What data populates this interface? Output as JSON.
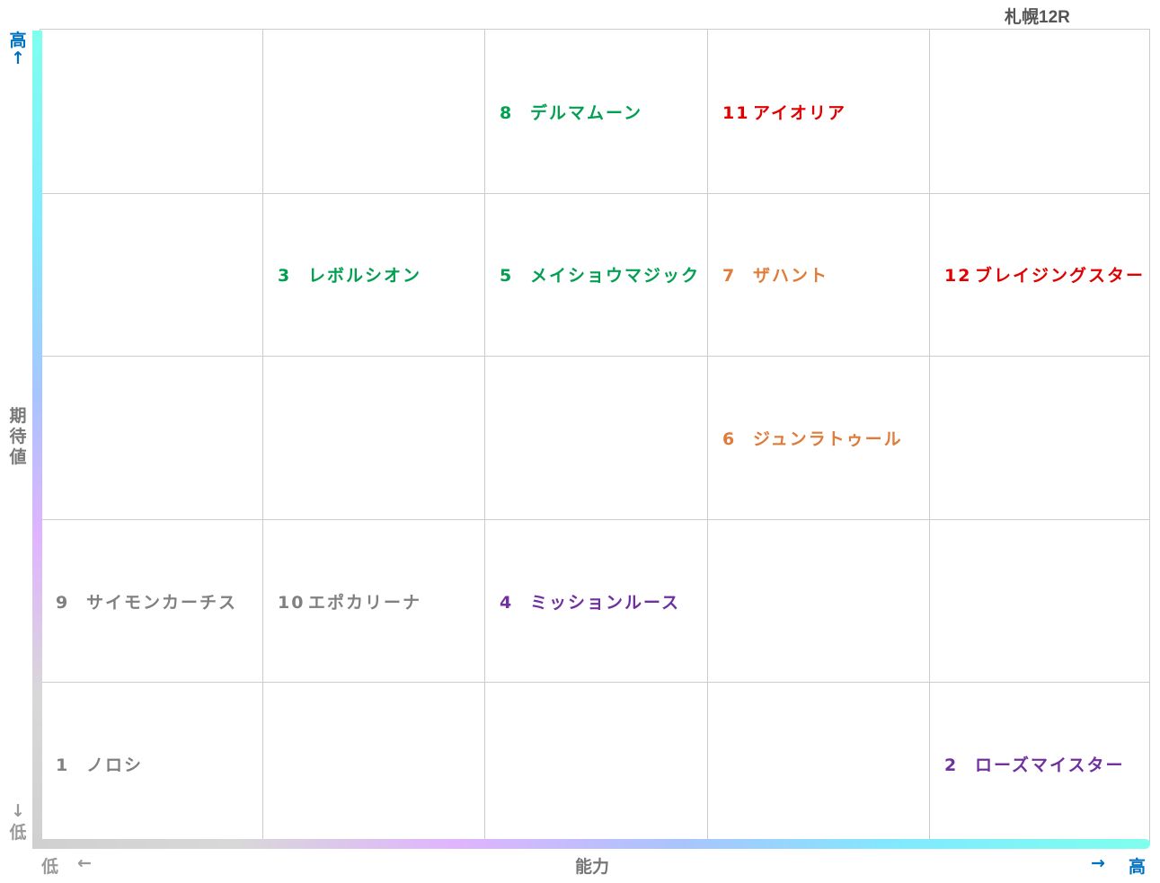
{
  "race_title": "札幌12R",
  "colors": {
    "gray": "#808080",
    "green": "#00a050",
    "purple": "#7030a0",
    "orange": "#e07b39",
    "red": "#e00000",
    "axis_blue": "#0070c0",
    "grid": "#cccccc"
  },
  "axis_labels": {
    "y_high": "高",
    "y_high_arrow": "↑",
    "y_title_1": "期",
    "y_title_2": "待",
    "y_title_3": "値",
    "y_low_arrow": "↓",
    "y_low": "低",
    "x_low": "低",
    "x_low_arrow": "←",
    "x_title": "能力",
    "x_high_arrow": "→",
    "x_high": "高"
  },
  "chart_data": {
    "type": "scatter",
    "title": "札幌12R",
    "xlabel": "能力",
    "ylabel": "期待値",
    "grid": true,
    "columns": 5,
    "rows": 5,
    "x_direction": "低 ← → 高",
    "y_direction": "低 ↓ ↑ 高",
    "points": [
      {
        "number": "1",
        "name": "ノロシ",
        "ability": 1,
        "expected_value": 1,
        "color": "gray"
      },
      {
        "number": "2",
        "name": "ローズマイスター",
        "ability": 5,
        "expected_value": 1,
        "color": "purple"
      },
      {
        "number": "3",
        "name": "レボルシオン",
        "ability": 2,
        "expected_value": 4,
        "color": "green"
      },
      {
        "number": "4",
        "name": "ミッションルース",
        "ability": 3,
        "expected_value": 2,
        "color": "purple"
      },
      {
        "number": "5",
        "name": "メイショウマジック",
        "ability": 3,
        "expected_value": 4,
        "color": "green"
      },
      {
        "number": "6",
        "name": "ジュンラトゥール",
        "ability": 4,
        "expected_value": 3,
        "color": "orange"
      },
      {
        "number": "7",
        "name": "ザハント",
        "ability": 4,
        "expected_value": 4,
        "color": "orange"
      },
      {
        "number": "8",
        "name": "デルマムーン",
        "ability": 3,
        "expected_value": 5,
        "color": "green"
      },
      {
        "number": "9",
        "name": "サイモンカーチス",
        "ability": 1,
        "expected_value": 2,
        "color": "gray"
      },
      {
        "number": "10",
        "name": "エポカリーナ",
        "ability": 2,
        "expected_value": 2,
        "color": "gray"
      },
      {
        "number": "11",
        "name": "アイオリア",
        "ability": 4,
        "expected_value": 5,
        "color": "red"
      },
      {
        "number": "12",
        "name": "ブレイジングスター",
        "ability": 5,
        "expected_value": 4,
        "color": "red"
      }
    ]
  }
}
